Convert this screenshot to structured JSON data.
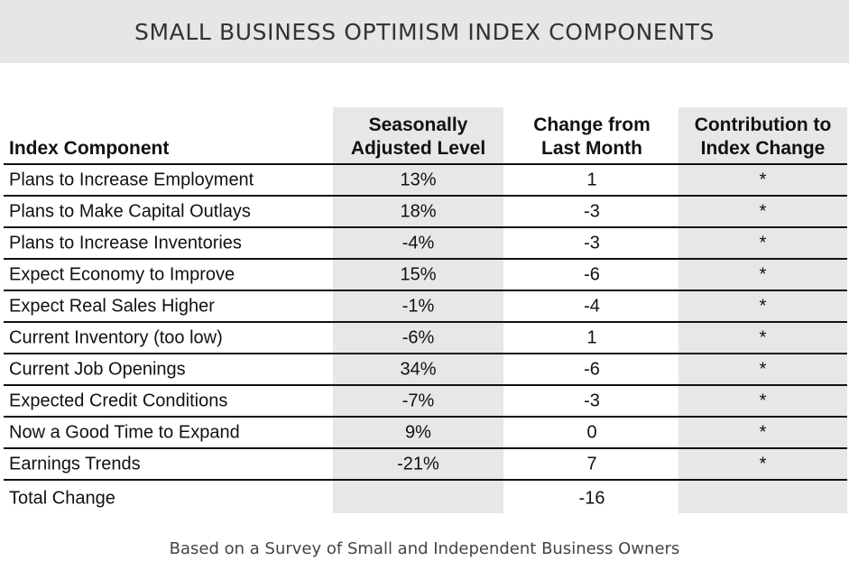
{
  "title": "SMALL BUSINESS OPTIMISM INDEX COMPONENTS",
  "footer": "Based on a Survey of Small and Independent Business Owners",
  "colors": {
    "title_bar": "#e6e6e6",
    "shaded_column": "#e6e7e9",
    "rule": "#111111"
  },
  "chart_data": {
    "type": "table",
    "title": "SMALL BUSINESS OPTIMISM INDEX COMPONENTS",
    "columns": [
      {
        "line1": "",
        "line2": "Index Component"
      },
      {
        "line1": "Seasonally",
        "line2": "Adjusted Level"
      },
      {
        "line1": "Change from",
        "line2": "Last Month"
      },
      {
        "line1": "Contribution to",
        "line2": "Index Change"
      }
    ],
    "rows": [
      {
        "component": "Plans to Increase Employment",
        "level": "13%",
        "change": "1",
        "contribution": "*"
      },
      {
        "component": "Plans to Make Capital Outlays",
        "level": "18%",
        "change": "-3",
        "contribution": "*"
      },
      {
        "component": "Plans to Increase Inventories",
        "level": "-4%",
        "change": "-3",
        "contribution": "*"
      },
      {
        "component": "Expect Economy to Improve",
        "level": "15%",
        "change": "-6",
        "contribution": "*"
      },
      {
        "component": "Expect Real Sales Higher",
        "level": "-1%",
        "change": "-4",
        "contribution": "*"
      },
      {
        "component": "Current Inventory (too low)",
        "level": "-6%",
        "change": "1",
        "contribution": "*"
      },
      {
        "component": "Current Job Openings",
        "level": "34%",
        "change": "-6",
        "contribution": "*"
      },
      {
        "component": "Expected Credit Conditions",
        "level": "-7%",
        "change": "-3",
        "contribution": "*"
      },
      {
        "component": "Now a Good Time to Expand",
        "level": "9%",
        "change": "0",
        "contribution": "*"
      },
      {
        "component": "Earnings Trends",
        "level": "-21%",
        "change": "7",
        "contribution": "*"
      }
    ],
    "total": {
      "component": "Total Change",
      "level": "",
      "change": "-16",
      "contribution": ""
    }
  }
}
